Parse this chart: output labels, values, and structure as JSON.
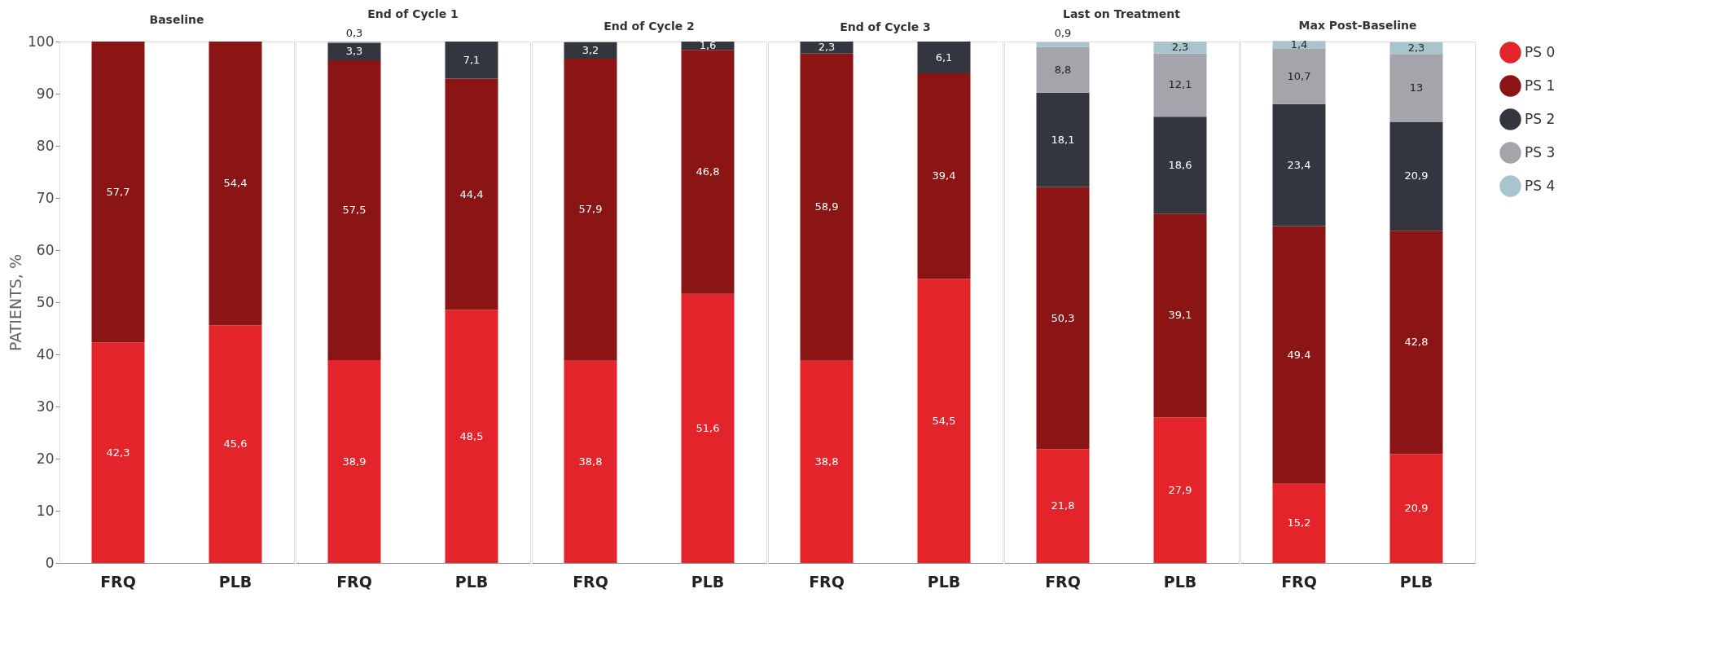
{
  "chart_data": [
    {
      "type": "bar",
      "stacked": true,
      "title": "Baseline",
      "ylabel": "PATIENTS, %",
      "categories": [
        "FRQ",
        "PLB"
      ],
      "ylim": [
        0,
        100
      ],
      "yticks": [
        0,
        10,
        20,
        30,
        40,
        50,
        60,
        70,
        80,
        90,
        100
      ],
      "grid": false,
      "legend": false,
      "series": [
        {
          "color": "#e3242b",
          "values": [
            42.3,
            45.6
          ],
          "value_labels": [
            "42,3",
            "45,6"
          ]
        },
        {
          "color": "#8b1414",
          "values": [
            57.7,
            54.4
          ],
          "value_labels": [
            "57,7",
            "54,4"
          ]
        }
      ]
    },
    {
      "type": "bar",
      "stacked": true,
      "title": "End of Cycle 1",
      "categories": [
        "FRQ",
        "PLB"
      ],
      "ylim": [
        0,
        100
      ],
      "tick_labels": "x",
      "grid": false,
      "legend": false,
      "series": [
        {
          "color": "#e3242b",
          "values": [
            38.9,
            48.5
          ],
          "value_labels": [
            "38,9",
            "48,5"
          ]
        },
        {
          "color": "#8b1414",
          "values": [
            57.5,
            44.4
          ],
          "value_labels": [
            "57,5",
            "44,4"
          ]
        },
        {
          "color": "#33363f",
          "values": [
            3.3,
            7.1
          ],
          "value_labels": [
            "3,3",
            "7,1"
          ]
        },
        {
          "color": "#a4a5ab",
          "values": [
            0.3,
            null
          ],
          "value_labels": [
            "0,3",
            null
          ]
        }
      ]
    },
    {
      "type": "bar",
      "stacked": true,
      "title": "End of Cycle 2",
      "categories": [
        "FRQ",
        "PLB"
      ],
      "ylim": [
        0,
        100
      ],
      "tick_labels": "x",
      "grid": false,
      "legend": false,
      "series": [
        {
          "color": "#e3242b",
          "values": [
            38.8,
            51.6
          ],
          "value_labels": [
            "38,8",
            "51,6"
          ]
        },
        {
          "color": "#8b1414",
          "values": [
            57.9,
            46.8
          ],
          "value_labels": [
            "57,9",
            "46,8"
          ]
        },
        {
          "color": "#33363f",
          "values": [
            3.2,
            1.6
          ],
          "value_labels": [
            "3,2",
            "1,6"
          ]
        }
      ]
    },
    {
      "type": "bar",
      "stacked": true,
      "title": "End of Cycle 3",
      "categories": [
        "FRQ",
        "PLB"
      ],
      "ylim": [
        0,
        100
      ],
      "tick_labels": "x",
      "grid": false,
      "legend": false,
      "series": [
        {
          "color": "#e3242b",
          "values": [
            38.8,
            54.5
          ],
          "value_labels": [
            "38,8",
            "54,5"
          ]
        },
        {
          "color": "#8b1414",
          "values": [
            58.9,
            39.4
          ],
          "value_labels": [
            "58,9",
            "39,4"
          ]
        },
        {
          "color": "#33363f",
          "values": [
            2.3,
            6.1
          ],
          "value_labels": [
            "2,3",
            "6,1"
          ]
        }
      ]
    },
    {
      "type": "bar",
      "stacked": true,
      "title": "Last on Treatment",
      "categories": [
        "FRQ",
        "PLB"
      ],
      "ylim": [
        0,
        100
      ],
      "tick_labels": "x",
      "grid": false,
      "legend": false,
      "series": [
        {
          "color": "#e3242b",
          "values": [
            21.8,
            27.9
          ],
          "value_labels": [
            "21,8",
            "27,9"
          ]
        },
        {
          "color": "#8b1414",
          "values": [
            50.3,
            39.1
          ],
          "value_labels": [
            "50,3",
            "39,1"
          ]
        },
        {
          "color": "#33363f",
          "values": [
            18.1,
            18.6
          ],
          "value_labels": [
            "18,1",
            "18,6"
          ]
        },
        {
          "color": "#a4a5ab",
          "values": [
            8.8,
            12.1
          ],
          "value_labels": [
            "8,8",
            "12,1"
          ]
        },
        {
          "color": "#a8c4cc",
          "values": [
            0.9,
            2.3
          ],
          "value_labels": [
            "0,9",
            "2,3"
          ]
        }
      ]
    },
    {
      "type": "bar",
      "stacked": true,
      "title": "Max Post-Baseline",
      "categories": [
        "FRQ",
        "PLB"
      ],
      "ylim": [
        0,
        100
      ],
      "tick_labels": "x",
      "grid": false,
      "legend": "right",
      "series": [
        {
          "name": "PS 0",
          "color": "#e3242b",
          "values": [
            15.2,
            20.9
          ],
          "value_labels": [
            "15,2",
            "20,9"
          ]
        },
        {
          "name": "PS 1",
          "color": "#8b1414",
          "values": [
            49.4,
            42.8
          ],
          "value_labels": [
            "49.4",
            "42,8"
          ]
        },
        {
          "name": "PS 2",
          "color": "#33363f",
          "values": [
            23.4,
            20.9
          ],
          "value_labels": [
            "23,4",
            "20,9"
          ]
        },
        {
          "name": "PS 3",
          "color": "#a4a5ab",
          "values": [
            10.7,
            13
          ],
          "value_labels": [
            "10,7",
            "13"
          ]
        },
        {
          "name": "PS 4",
          "color": "#a8c4cc",
          "values": [
            1.4,
            2.3
          ],
          "value_labels": [
            "1,4",
            "2,3"
          ]
        }
      ]
    }
  ]
}
